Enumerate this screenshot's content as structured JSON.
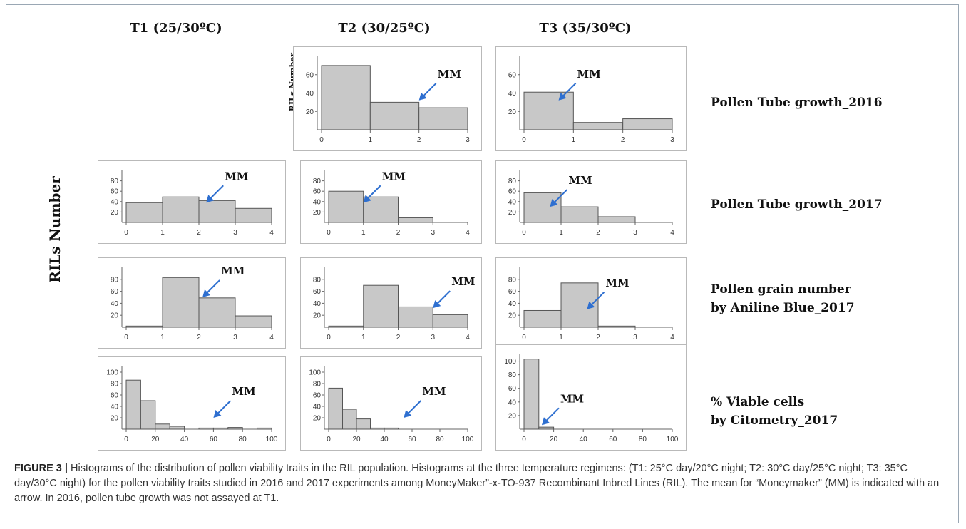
{
  "columns": [
    "T1 (25/30ºC)",
    "T2 (30/25ºC)",
    "T3 (35/30ºC)"
  ],
  "rows": [
    {
      "label_lines": [
        "Pollen Tube growth_2016"
      ]
    },
    {
      "label_lines": [
        "Pollen Tube growth_2017"
      ]
    },
    {
      "label_lines": [
        "Pollen grain number",
        "by Aniline Blue_2017"
      ]
    },
    {
      "label_lines": [
        "% Viable cells",
        "by Citometry_2017"
      ]
    }
  ],
  "y_axis_label": "RILs Number",
  "y_axis_label_small": "RILs Number",
  "caption": {
    "figure_label": "FIGURE 3 |",
    "text": " Histograms of the distribution of pollen viability traits in the RIL population. Histograms at the three temperature regimens: (T1: 25°C day/20°C night; T2: 30°C day/25°C night; T3: 35°C day/30°C night) for the pollen viability traits studied in 2016 and 2017 experiments among MoneyMaker”-x-TO-937 Recombinant Inbred Lines (RIL). The mean for “Moneymaker” (MM) is indicated with an arrow. In 2016, pollen tube growth was not assayed at T1."
  },
  "colors": {
    "bar_fill": "#c8c8c8",
    "bar_stroke": "#555555",
    "arrow": "#2e6fd0",
    "panel_border": "#b9b9b9"
  },
  "chart_data": [
    {
      "type": "bar",
      "id": "ptg2016-T2",
      "xlim": [
        0,
        3
      ],
      "xticks": [
        "0",
        "1",
        "2",
        "3"
      ],
      "ylim": [
        0,
        80
      ],
      "yticks": [
        "20",
        "40",
        "60"
      ],
      "bins": [
        [
          0,
          1,
          70
        ],
        [
          1,
          2,
          30
        ],
        [
          2,
          3,
          24
        ]
      ],
      "annotation": {
        "text": "MM",
        "x": 2.0,
        "y": 32
      }
    },
    {
      "type": "bar",
      "id": "ptg2016-T3",
      "xlim": [
        0,
        3
      ],
      "xticks": [
        "0",
        "1",
        "2",
        "3"
      ],
      "ylim": [
        0,
        80
      ],
      "yticks": [
        "20",
        "40",
        "60"
      ],
      "bins": [
        [
          0,
          1,
          41
        ],
        [
          1,
          2,
          8
        ],
        [
          2,
          3,
          12
        ]
      ],
      "annotation": {
        "text": "MM",
        "x": 0.7,
        "y": 32
      }
    },
    {
      "type": "bar",
      "id": "ptg2017-T1",
      "xlim": [
        0,
        4
      ],
      "xticks": [
        "0",
        "1",
        "2",
        "3",
        "4"
      ],
      "ylim": [
        0,
        100
      ],
      "yticks": [
        "20",
        "40",
        "60",
        "80"
      ],
      "bins": [
        [
          0,
          1,
          38
        ],
        [
          1,
          2,
          49
        ],
        [
          2,
          3,
          42
        ],
        [
          3,
          4,
          27
        ]
      ],
      "annotation": {
        "text": "MM",
        "x": 2.2,
        "y": 38
      }
    },
    {
      "type": "bar",
      "id": "ptg2017-T2",
      "xlim": [
        0,
        4
      ],
      "xticks": [
        "0",
        "1",
        "2",
        "3",
        "4"
      ],
      "ylim": [
        0,
        100
      ],
      "yticks": [
        "20",
        "40",
        "60",
        "80"
      ],
      "bins": [
        [
          0,
          1,
          60
        ],
        [
          1,
          2,
          49
        ],
        [
          2,
          3,
          9
        ]
      ],
      "annotation": {
        "text": "MM",
        "x": 1.0,
        "y": 38
      }
    },
    {
      "type": "bar",
      "id": "ptg2017-T3",
      "xlim": [
        0,
        4
      ],
      "xticks": [
        "0",
        "1",
        "2",
        "3",
        "4"
      ],
      "ylim": [
        0,
        100
      ],
      "yticks": [
        "20",
        "40",
        "60",
        "80"
      ],
      "bins": [
        [
          0,
          1,
          57
        ],
        [
          1,
          2,
          30
        ],
        [
          2,
          3,
          11
        ]
      ],
      "annotation": {
        "text": "MM",
        "x": 0.7,
        "y": 30
      }
    },
    {
      "type": "bar",
      "id": "pgn2017-T1",
      "xlim": [
        0,
        4
      ],
      "xticks": [
        "0",
        "1",
        "2",
        "3",
        "4"
      ],
      "ylim": [
        0,
        100
      ],
      "yticks": [
        "20",
        "40",
        "60",
        "80"
      ],
      "bins": [
        [
          0,
          1,
          2
        ],
        [
          1,
          2,
          83
        ],
        [
          2,
          3,
          49
        ],
        [
          3,
          4,
          19
        ]
      ],
      "annotation": {
        "text": "MM",
        "x": 2.1,
        "y": 50
      }
    },
    {
      "type": "bar",
      "id": "pgn2017-T2",
      "xlim": [
        0,
        4
      ],
      "xticks": [
        "0",
        "1",
        "2",
        "3",
        "4"
      ],
      "ylim": [
        0,
        100
      ],
      "yticks": [
        "20",
        "40",
        "60",
        "80"
      ],
      "bins": [
        [
          0,
          1,
          2
        ],
        [
          1,
          2,
          70
        ],
        [
          2,
          3,
          34
        ],
        [
          3,
          4,
          21
        ]
      ],
      "annotation": {
        "text": "MM",
        "x": 3.0,
        "y": 32
      }
    },
    {
      "type": "bar",
      "id": "pgn2017-T3",
      "xlim": [
        0,
        4
      ],
      "xticks": [
        "0",
        "1",
        "2",
        "3",
        "4"
      ],
      "ylim": [
        0,
        100
      ],
      "yticks": [
        "20",
        "40",
        "60",
        "80"
      ],
      "bins": [
        [
          0,
          1,
          28
        ],
        [
          1,
          2,
          74
        ],
        [
          2,
          3,
          2
        ]
      ],
      "annotation": {
        "text": "MM",
        "x": 1.7,
        "y": 30
      }
    },
    {
      "type": "bar",
      "id": "vc2017-T1",
      "xlim": [
        0,
        100
      ],
      "xticks": [
        "0",
        "20",
        "40",
        "60",
        "80",
        "100"
      ],
      "ylim": [
        0,
        110
      ],
      "yticks": [
        "20",
        "40",
        "60",
        "80",
        "100"
      ],
      "bins": [
        [
          0,
          10,
          86
        ],
        [
          10,
          20,
          50
        ],
        [
          20,
          30,
          9
        ],
        [
          30,
          40,
          5
        ],
        [
          50,
          60,
          2
        ],
        [
          60,
          70,
          2
        ],
        [
          70,
          80,
          3
        ],
        [
          90,
          100,
          2
        ]
      ],
      "annotation": {
        "text": "MM",
        "x": 60,
        "y": 20
      }
    },
    {
      "type": "bar",
      "id": "vc2017-T2",
      "xlim": [
        0,
        100
      ],
      "xticks": [
        "0",
        "20",
        "40",
        "60",
        "80",
        "100"
      ],
      "ylim": [
        0,
        110
      ],
      "yticks": [
        "20",
        "40",
        "60",
        "80",
        "100"
      ],
      "bins": [
        [
          0,
          10,
          72
        ],
        [
          10,
          20,
          35
        ],
        [
          20,
          30,
          18
        ],
        [
          30,
          40,
          2
        ],
        [
          40,
          50,
          2
        ]
      ],
      "annotation": {
        "text": "MM",
        "x": 54,
        "y": 20
      }
    },
    {
      "type": "bar",
      "id": "vc2017-T3",
      "xlim": [
        0,
        100
      ],
      "xticks": [
        "0",
        "20",
        "40",
        "60",
        "80",
        "100"
      ],
      "ylim": [
        0,
        110
      ],
      "yticks": [
        "20",
        "40",
        "60",
        "80",
        "100"
      ],
      "bins": [
        [
          0,
          10,
          103
        ],
        [
          10,
          20,
          3
        ]
      ],
      "annotation": {
        "text": "MM",
        "x": 12,
        "y": 6
      }
    }
  ]
}
